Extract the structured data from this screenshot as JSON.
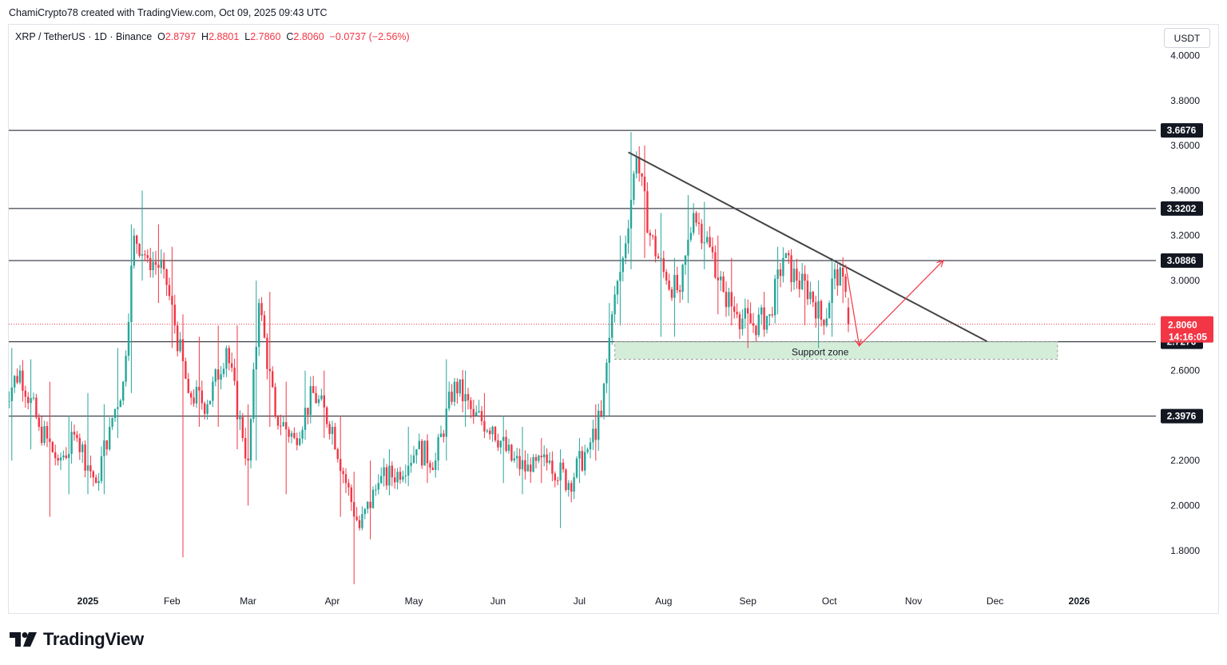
{
  "credit": "ChamiCrypto78 created with TradingView.com, Oct 09, 2025 09:43 UTC",
  "legend": {
    "symbol": "XRP / TetherUS · 1D · Binance",
    "open_label": "O",
    "open": "2.8797",
    "high_label": "H",
    "high": "2.8801",
    "low_label": "L",
    "low": "2.7860",
    "close_label": "C",
    "close": "2.8060",
    "change": "−0.0737 (−2.56%)"
  },
  "currency_button": "USDT",
  "footer": {
    "brand": "TradingView"
  },
  "colors": {
    "up": "#26a69a",
    "down": "#f23645",
    "line": "#131722",
    "trendline": "#444444",
    "support_fill": "#d4edd9",
    "support_border": "#9e9e9e",
    "projection": "#f23645",
    "price_badge": "#f23645",
    "level_badge": "#131722"
  },
  "chart_data": {
    "type": "candlestick",
    "title": "XRP / TetherUS · 1D · Binance",
    "ylim": [
      1.65,
      4.05
    ],
    "y_ticks": [
      "4.0000",
      "3.8000",
      "3.6000",
      "3.4000",
      "3.2000",
      "3.0000",
      "2.6000",
      "2.2000",
      "2.0000",
      "1.8000"
    ],
    "x_ticks": [
      "2025",
      "Feb",
      "Mar",
      "Apr",
      "May",
      "Jun",
      "Jul",
      "Aug",
      "Sep",
      "Oct",
      "Nov",
      "Dec",
      "2026"
    ],
    "x_tick_dates": [
      "2025-01-01",
      "2025-02-01",
      "2025-03-01",
      "2025-04-01",
      "2025-05-01",
      "2025-06-01",
      "2025-07-01",
      "2025-08-01",
      "2025-09-01",
      "2025-10-01",
      "2025-11-01",
      "2025-12-01",
      "2026-01-01"
    ],
    "horizontal_levels": [
      {
        "value": 3.6676,
        "label": "3.6676"
      },
      {
        "value": 3.3202,
        "label": "3.3202"
      },
      {
        "value": 3.0886,
        "label": "3.0886"
      },
      {
        "value": 2.7276,
        "label": "2.7276"
      },
      {
        "value": 2.3976,
        "label": "2.3976"
      }
    ],
    "current_price": {
      "value": 2.806,
      "label": "2.8060",
      "countdown": "14:16:05"
    },
    "trendline": {
      "from": [
        "2025-07-19",
        3.57
      ],
      "to": [
        "2025-11-28",
        2.73
      ]
    },
    "support_zone": {
      "label": "Support zone",
      "from_date": "2025-07-14",
      "to_date": "2025-12-24",
      "top": 2.7276,
      "bottom": 2.65
    },
    "projection": [
      [
        "2025-10-07",
        3.07
      ],
      [
        "2025-10-12",
        2.71
      ],
      [
        "2025-11-12",
        3.09
      ]
    ],
    "daily_candles": [
      [
        "2024-12-01",
        2.45,
        2.7,
        2.2,
        2.6
      ],
      [
        "2024-12-08",
        2.6,
        2.65,
        2.25,
        2.35
      ],
      [
        "2024-12-15",
        2.35,
        2.55,
        1.95,
        2.2
      ],
      [
        "2024-12-22",
        2.2,
        2.4,
        2.05,
        2.3
      ],
      [
        "2024-12-29",
        2.3,
        2.5,
        2.05,
        2.1
      ],
      [
        "2025-01-05",
        2.1,
        2.45,
        2.05,
        2.35
      ],
      [
        "2025-01-10",
        2.35,
        2.7,
        2.3,
        2.55
      ],
      [
        "2025-01-15",
        2.55,
        3.25,
        2.5,
        3.2
      ],
      [
        "2025-01-19",
        3.2,
        3.4,
        3.0,
        3.1
      ],
      [
        "2025-01-24",
        3.1,
        3.25,
        2.9,
        3.05
      ],
      [
        "2025-01-30",
        3.05,
        3.15,
        2.7,
        2.8
      ],
      [
        "2025-02-03",
        2.8,
        2.85,
        1.77,
        2.5
      ],
      [
        "2025-02-08",
        2.5,
        2.75,
        2.35,
        2.45
      ],
      [
        "2025-02-15",
        2.45,
        2.8,
        2.35,
        2.7
      ],
      [
        "2025-02-22",
        2.7,
        2.8,
        2.25,
        2.3
      ],
      [
        "2025-02-28",
        2.3,
        2.45,
        2.0,
        2.2
      ],
      [
        "2025-03-02",
        2.2,
        3.0,
        2.2,
        2.9
      ],
      [
        "2025-03-06",
        2.9,
        2.95,
        2.35,
        2.4
      ],
      [
        "2025-03-12",
        2.4,
        2.55,
        2.05,
        2.3
      ],
      [
        "2025-03-19",
        2.3,
        2.6,
        2.3,
        2.5
      ],
      [
        "2025-03-26",
        2.5,
        2.6,
        2.3,
        2.35
      ],
      [
        "2025-04-02",
        2.35,
        2.4,
        1.95,
        2.1
      ],
      [
        "2025-04-07",
        2.1,
        2.15,
        1.65,
        1.9
      ],
      [
        "2025-04-12",
        1.9,
        2.2,
        1.85,
        2.1
      ],
      [
        "2025-04-19",
        2.1,
        2.25,
        2.05,
        2.15
      ],
      [
        "2025-04-26",
        2.15,
        2.35,
        2.1,
        2.25
      ],
      [
        "2025-05-03",
        2.25,
        2.3,
        2.1,
        2.2
      ],
      [
        "2025-05-10",
        2.2,
        2.65,
        2.2,
        2.55
      ],
      [
        "2025-05-17",
        2.55,
        2.6,
        2.35,
        2.4
      ],
      [
        "2025-05-24",
        2.4,
        2.5,
        2.3,
        2.35
      ],
      [
        "2025-05-31",
        2.35,
        2.4,
        2.1,
        2.2
      ],
      [
        "2025-06-07",
        2.2,
        2.35,
        2.05,
        2.15
      ],
      [
        "2025-06-14",
        2.15,
        2.3,
        2.1,
        2.2
      ],
      [
        "2025-06-21",
        2.2,
        2.25,
        1.9,
        2.1
      ],
      [
        "2025-06-28",
        2.1,
        2.3,
        2.1,
        2.25
      ],
      [
        "2025-07-05",
        2.25,
        2.45,
        2.2,
        2.4
      ],
      [
        "2025-07-10",
        2.4,
        2.9,
        2.4,
        2.85
      ],
      [
        "2025-07-14",
        2.85,
        3.2,
        2.8,
        3.1
      ],
      [
        "2025-07-18",
        3.1,
        3.66,
        3.05,
        3.55
      ],
      [
        "2025-07-23",
        3.55,
        3.6,
        3.1,
        3.2
      ],
      [
        "2025-07-28",
        3.2,
        3.3,
        2.75,
        3.0
      ],
      [
        "2025-08-03",
        3.0,
        3.1,
        2.75,
        2.95
      ],
      [
        "2025-08-08",
        2.95,
        3.38,
        2.9,
        3.3
      ],
      [
        "2025-08-13",
        3.3,
        3.35,
        3.05,
        3.15
      ],
      [
        "2025-08-19",
        3.15,
        3.2,
        2.85,
        2.95
      ],
      [
        "2025-08-24",
        2.95,
        3.1,
        2.8,
        2.85
      ],
      [
        "2025-08-29",
        2.85,
        2.9,
        2.7,
        2.8
      ],
      [
        "2025-09-04",
        2.8,
        2.95,
        2.75,
        2.85
      ],
      [
        "2025-09-10",
        2.85,
        3.15,
        2.85,
        3.1
      ],
      [
        "2025-09-15",
        3.1,
        3.14,
        2.95,
        3.0
      ],
      [
        "2025-09-20",
        3.0,
        3.05,
        2.8,
        2.95
      ],
      [
        "2025-09-25",
        2.95,
        3.0,
        2.7,
        2.8
      ],
      [
        "2025-09-30",
        2.8,
        3.1,
        2.75,
        3.05
      ],
      [
        "2025-10-04",
        3.05,
        3.08,
        2.9,
        2.95
      ],
      [
        "2025-10-08",
        2.88,
        2.88,
        2.78,
        2.806
      ]
    ]
  }
}
